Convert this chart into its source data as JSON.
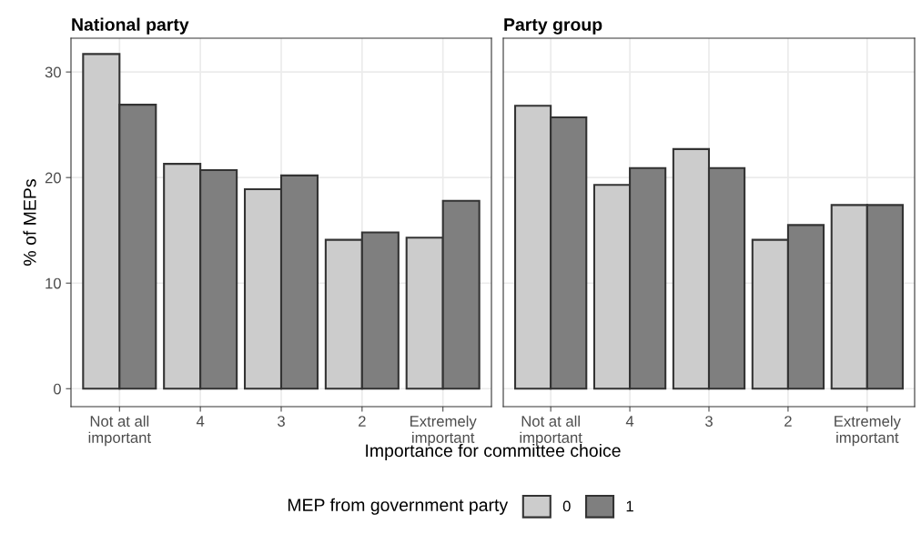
{
  "chart_data": [
    {
      "type": "bar",
      "title": "National party",
      "ylabel": "% of MEPs",
      "xlabel": "Importance for committee choice",
      "legend_title": "MEP from government party",
      "legend": "bottom",
      "categories": [
        "Not at all\nimportant",
        "4",
        "3",
        "2",
        "Extremely\nimportant"
      ],
      "series": [
        {
          "name": "0",
          "color": "#cccccc",
          "values": [
            31.7,
            21.3,
            18.9,
            14.1,
            14.3
          ]
        },
        {
          "name": "1",
          "color": "#7f7f7f",
          "values": [
            26.9,
            20.7,
            20.2,
            14.8,
            17.8
          ]
        }
      ],
      "ylim": [
        -1.7,
        33.2
      ],
      "yticks": [
        0,
        10,
        20,
        30
      ],
      "grid": true
    },
    {
      "type": "bar",
      "title": "Party group",
      "tick_labels": "x",
      "categories": [
        "Not at all\nimportant",
        "4",
        "3",
        "2",
        "Extremely\nimportant"
      ],
      "series": [
        {
          "color": "#cccccc",
          "values": [
            26.8,
            19.3,
            22.7,
            14.1,
            17.4
          ]
        },
        {
          "color": "#7f7f7f",
          "values": [
            25.7,
            20.9,
            20.9,
            15.5,
            17.4
          ]
        }
      ],
      "ylim": [
        -1.7,
        33.2
      ],
      "yticks": [
        0,
        10,
        20,
        30
      ],
      "grid": true
    }
  ]
}
